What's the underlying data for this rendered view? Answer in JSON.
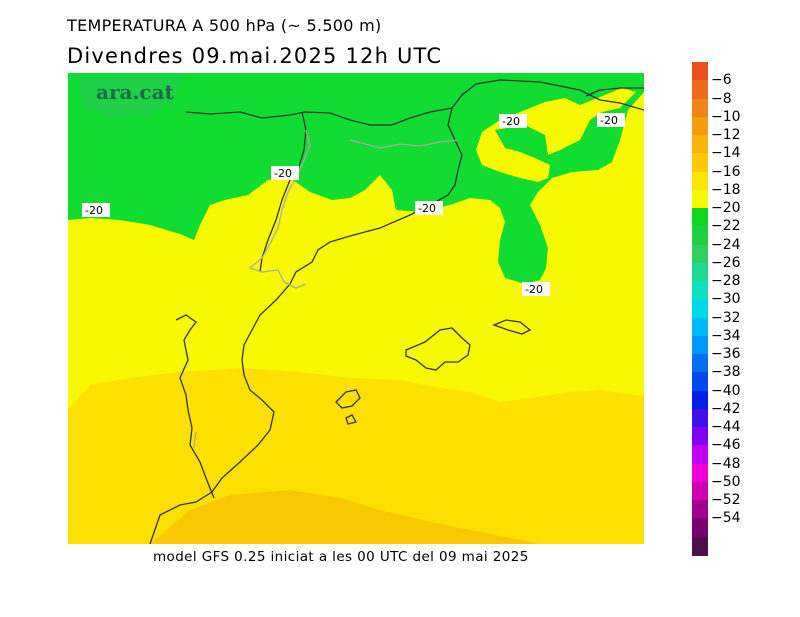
{
  "title": {
    "line1": "TEMPERATURA A 500 hPa (~ 5.500 m)",
    "line2": "Divendres  09.mai.2025  12h  UTC"
  },
  "footer": "model GFS 0.25 iniciat a les 00 UTC del 09 mai 2025",
  "logo": "ara.cat",
  "contour_label": "-20",
  "colorbar": {
    "labels": [
      "−6",
      "−8",
      "−10",
      "−12",
      "−14",
      "−16",
      "−18",
      "−20",
      "−22",
      "−24",
      "−26",
      "−28",
      "−30",
      "−32",
      "−34",
      "−36",
      "−38",
      "−40",
      "−42",
      "−44",
      "−46",
      "−48",
      "−50",
      "−52",
      "−54"
    ],
    "colors": [
      "#e8501e",
      "#ec6a1a",
      "#f08416",
      "#f49c10",
      "#f8b40a",
      "#fcc806",
      "#ffe400",
      "#f8f800",
      "#10d820",
      "#20d040",
      "#30d060",
      "#20d890",
      "#10e0c0",
      "#00d8e8",
      "#00b8f8",
      "#0098f8",
      "#0070f0",
      "#0048f0",
      "#0020e8",
      "#4010e8",
      "#8000f0",
      "#c000f0",
      "#f000d8",
      "#d000b0",
      "#a00090",
      "#780070",
      "#501050"
    ]
  },
  "colors": {
    "cold_green": "#10dc32",
    "yellow_minus20_minus18": "#f8f800",
    "yellow_minus18_minus16": "#fce000",
    "yellow_minus16_minus14": "#fac800",
    "coast": "#333333",
    "border": "#aaaaaa"
  }
}
